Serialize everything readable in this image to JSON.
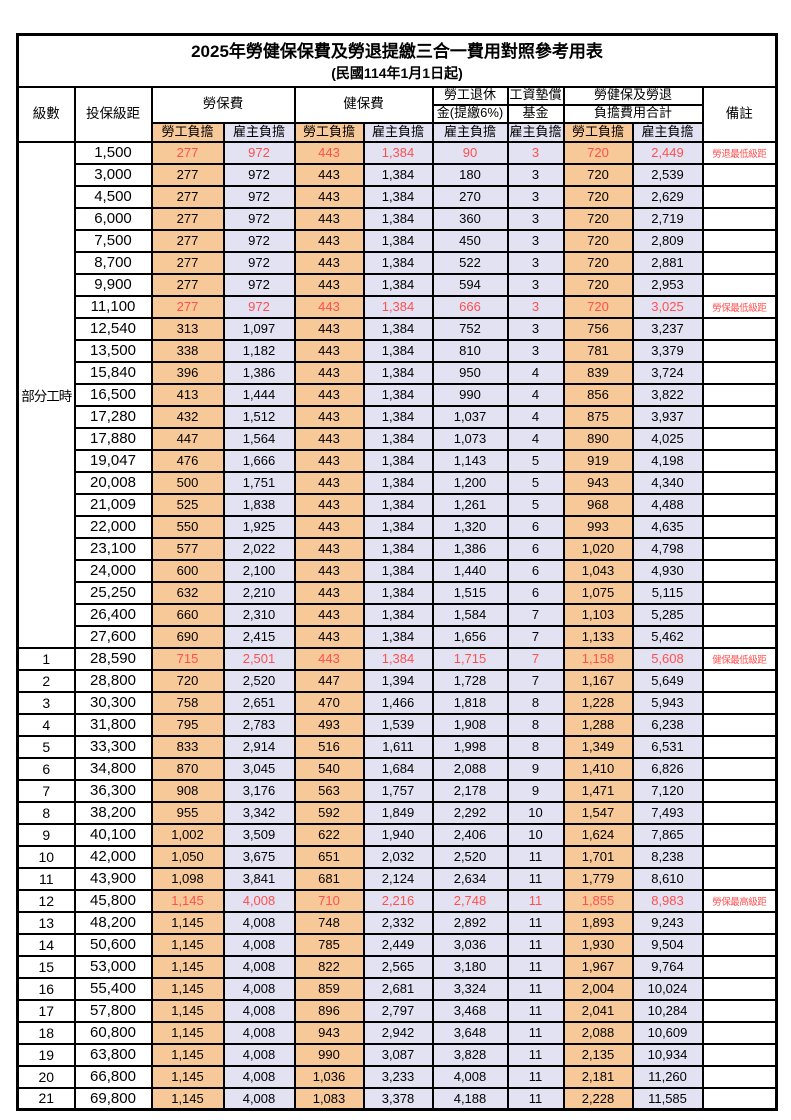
{
  "title": "2025年勞健保保費及勞退提繳三合一費用對照參考用表",
  "subtitle": "(民國114年1月1日起)",
  "header": {
    "level": "級數",
    "bracket": "投保級距",
    "labor_insurance": "勞保費",
    "health_insurance": "健保費",
    "pension_line1": "勞工退休",
    "pension_line2": "金(提繳6%)",
    "wage_fund_line1": "工資墊償",
    "wage_fund_line2": "基金",
    "total_line1": "勞健保及勞退",
    "total_line2": "負擔費用合計",
    "remark": "備註",
    "employee_share": "勞工負擔",
    "employer_share": "雇主負擔"
  },
  "part_time_label": "部分工時",
  "colors": {
    "employee_bg": "#F8C998",
    "employer_bg": "#E3E2F2",
    "highlight_red": "#FF5050"
  },
  "rows": [
    {
      "bracket": "1,500",
      "labor_emp": "277",
      "labor_er": "972",
      "health_emp": "443",
      "health_er": "1,384",
      "pension": "90",
      "fund": "3",
      "total_emp": "720",
      "total_er": "2,449",
      "note": "勞退最低級距",
      "highlight": true
    },
    {
      "bracket": "3,000",
      "labor_emp": "277",
      "labor_er": "972",
      "health_emp": "443",
      "health_er": "1,384",
      "pension": "180",
      "fund": "3",
      "total_emp": "720",
      "total_er": "2,539",
      "note": "",
      "highlight": false
    },
    {
      "bracket": "4,500",
      "labor_emp": "277",
      "labor_er": "972",
      "health_emp": "443",
      "health_er": "1,384",
      "pension": "270",
      "fund": "3",
      "total_emp": "720",
      "total_er": "2,629",
      "note": "",
      "highlight": false
    },
    {
      "bracket": "6,000",
      "labor_emp": "277",
      "labor_er": "972",
      "health_emp": "443",
      "health_er": "1,384",
      "pension": "360",
      "fund": "3",
      "total_emp": "720",
      "total_er": "2,719",
      "note": "",
      "highlight": false
    },
    {
      "bracket": "7,500",
      "labor_emp": "277",
      "labor_er": "972",
      "health_emp": "443",
      "health_er": "1,384",
      "pension": "450",
      "fund": "3",
      "total_emp": "720",
      "total_er": "2,809",
      "note": "",
      "highlight": false
    },
    {
      "bracket": "8,700",
      "labor_emp": "277",
      "labor_er": "972",
      "health_emp": "443",
      "health_er": "1,384",
      "pension": "522",
      "fund": "3",
      "total_emp": "720",
      "total_er": "2,881",
      "note": "",
      "highlight": false
    },
    {
      "bracket": "9,900",
      "labor_emp": "277",
      "labor_er": "972",
      "health_emp": "443",
      "health_er": "1,384",
      "pension": "594",
      "fund": "3",
      "total_emp": "720",
      "total_er": "2,953",
      "note": "",
      "highlight": false
    },
    {
      "bracket": "11,100",
      "labor_emp": "277",
      "labor_er": "972",
      "health_emp": "443",
      "health_er": "1,384",
      "pension": "666",
      "fund": "3",
      "total_emp": "720",
      "total_er": "3,025",
      "note": "勞保最低級距",
      "highlight": true
    },
    {
      "bracket": "12,540",
      "labor_emp": "313",
      "labor_er": "1,097",
      "health_emp": "443",
      "health_er": "1,384",
      "pension": "752",
      "fund": "3",
      "total_emp": "756",
      "total_er": "3,237",
      "note": "",
      "highlight": false
    },
    {
      "bracket": "13,500",
      "labor_emp": "338",
      "labor_er": "1,182",
      "health_emp": "443",
      "health_er": "1,384",
      "pension": "810",
      "fund": "3",
      "total_emp": "781",
      "total_er": "3,379",
      "note": "",
      "highlight": false
    },
    {
      "bracket": "15,840",
      "labor_emp": "396",
      "labor_er": "1,386",
      "health_emp": "443",
      "health_er": "1,384",
      "pension": "950",
      "fund": "4",
      "total_emp": "839",
      "total_er": "3,724",
      "note": "",
      "highlight": false
    },
    {
      "bracket": "16,500",
      "labor_emp": "413",
      "labor_er": "1,444",
      "health_emp": "443",
      "health_er": "1,384",
      "pension": "990",
      "fund": "4",
      "total_emp": "856",
      "total_er": "3,822",
      "note": "",
      "highlight": false
    },
    {
      "bracket": "17,280",
      "labor_emp": "432",
      "labor_er": "1,512",
      "health_emp": "443",
      "health_er": "1,384",
      "pension": "1,037",
      "fund": "4",
      "total_emp": "875",
      "total_er": "3,937",
      "note": "",
      "highlight": false
    },
    {
      "bracket": "17,880",
      "labor_emp": "447",
      "labor_er": "1,564",
      "health_emp": "443",
      "health_er": "1,384",
      "pension": "1,073",
      "fund": "4",
      "total_emp": "890",
      "total_er": "4,025",
      "note": "",
      "highlight": false
    },
    {
      "bracket": "19,047",
      "labor_emp": "476",
      "labor_er": "1,666",
      "health_emp": "443",
      "health_er": "1,384",
      "pension": "1,143",
      "fund": "5",
      "total_emp": "919",
      "total_er": "4,198",
      "note": "",
      "highlight": false
    },
    {
      "bracket": "20,008",
      "labor_emp": "500",
      "labor_er": "1,751",
      "health_emp": "443",
      "health_er": "1,384",
      "pension": "1,200",
      "fund": "5",
      "total_emp": "943",
      "total_er": "4,340",
      "note": "",
      "highlight": false
    },
    {
      "bracket": "21,009",
      "labor_emp": "525",
      "labor_er": "1,838",
      "health_emp": "443",
      "health_er": "1,384",
      "pension": "1,261",
      "fund": "5",
      "total_emp": "968",
      "total_er": "4,488",
      "note": "",
      "highlight": false
    },
    {
      "bracket": "22,000",
      "labor_emp": "550",
      "labor_er": "1,925",
      "health_emp": "443",
      "health_er": "1,384",
      "pension": "1,320",
      "fund": "6",
      "total_emp": "993",
      "total_er": "4,635",
      "note": "",
      "highlight": false
    },
    {
      "bracket": "23,100",
      "labor_emp": "577",
      "labor_er": "2,022",
      "health_emp": "443",
      "health_er": "1,384",
      "pension": "1,386",
      "fund": "6",
      "total_emp": "1,020",
      "total_er": "4,798",
      "note": "",
      "highlight": false
    },
    {
      "bracket": "24,000",
      "labor_emp": "600",
      "labor_er": "2,100",
      "health_emp": "443",
      "health_er": "1,384",
      "pension": "1,440",
      "fund": "6",
      "total_emp": "1,043",
      "total_er": "4,930",
      "note": "",
      "highlight": false
    },
    {
      "bracket": "25,250",
      "labor_emp": "632",
      "labor_er": "2,210",
      "health_emp": "443",
      "health_er": "1,384",
      "pension": "1,515",
      "fund": "6",
      "total_emp": "1,075",
      "total_er": "5,115",
      "note": "",
      "highlight": false
    },
    {
      "bracket": "26,400",
      "labor_emp": "660",
      "labor_er": "2,310",
      "health_emp": "443",
      "health_er": "1,384",
      "pension": "1,584",
      "fund": "7",
      "total_emp": "1,103",
      "total_er": "5,285",
      "note": "",
      "highlight": false
    },
    {
      "bracket": "27,600",
      "labor_emp": "690",
      "labor_er": "2,415",
      "health_emp": "443",
      "health_er": "1,384",
      "pension": "1,656",
      "fund": "7",
      "total_emp": "1,133",
      "total_er": "5,462",
      "note": "",
      "highlight": false
    },
    {
      "level": "1",
      "bracket": "28,590",
      "labor_emp": "715",
      "labor_er": "2,501",
      "health_emp": "443",
      "health_er": "1,384",
      "pension": "1,715",
      "fund": "7",
      "total_emp": "1,158",
      "total_er": "5,608",
      "note": "健保最低級距",
      "highlight": true
    },
    {
      "level": "2",
      "bracket": "28,800",
      "labor_emp": "720",
      "labor_er": "2,520",
      "health_emp": "447",
      "health_er": "1,394",
      "pension": "1,728",
      "fund": "7",
      "total_emp": "1,167",
      "total_er": "5,649",
      "note": "",
      "highlight": false
    },
    {
      "level": "3",
      "bracket": "30,300",
      "labor_emp": "758",
      "labor_er": "2,651",
      "health_emp": "470",
      "health_er": "1,466",
      "pension": "1,818",
      "fund": "8",
      "total_emp": "1,228",
      "total_er": "5,943",
      "note": "",
      "highlight": false
    },
    {
      "level": "4",
      "bracket": "31,800",
      "labor_emp": "795",
      "labor_er": "2,783",
      "health_emp": "493",
      "health_er": "1,539",
      "pension": "1,908",
      "fund": "8",
      "total_emp": "1,288",
      "total_er": "6,238",
      "note": "",
      "highlight": false
    },
    {
      "level": "5",
      "bracket": "33,300",
      "labor_emp": "833",
      "labor_er": "2,914",
      "health_emp": "516",
      "health_er": "1,611",
      "pension": "1,998",
      "fund": "8",
      "total_emp": "1,349",
      "total_er": "6,531",
      "note": "",
      "highlight": false
    },
    {
      "level": "6",
      "bracket": "34,800",
      "labor_emp": "870",
      "labor_er": "3,045",
      "health_emp": "540",
      "health_er": "1,684",
      "pension": "2,088",
      "fund": "9",
      "total_emp": "1,410",
      "total_er": "6,826",
      "note": "",
      "highlight": false
    },
    {
      "level": "7",
      "bracket": "36,300",
      "labor_emp": "908",
      "labor_er": "3,176",
      "health_emp": "563",
      "health_er": "1,757",
      "pension": "2,178",
      "fund": "9",
      "total_emp": "1,471",
      "total_er": "7,120",
      "note": "",
      "highlight": false
    },
    {
      "level": "8",
      "bracket": "38,200",
      "labor_emp": "955",
      "labor_er": "3,342",
      "health_emp": "592",
      "health_er": "1,849",
      "pension": "2,292",
      "fund": "10",
      "total_emp": "1,547",
      "total_er": "7,493",
      "note": "",
      "highlight": false
    },
    {
      "level": "9",
      "bracket": "40,100",
      "labor_emp": "1,002",
      "labor_er": "3,509",
      "health_emp": "622",
      "health_er": "1,940",
      "pension": "2,406",
      "fund": "10",
      "total_emp": "1,624",
      "total_er": "7,865",
      "note": "",
      "highlight": false
    },
    {
      "level": "10",
      "bracket": "42,000",
      "labor_emp": "1,050",
      "labor_er": "3,675",
      "health_emp": "651",
      "health_er": "2,032",
      "pension": "2,520",
      "fund": "11",
      "total_emp": "1,701",
      "total_er": "8,238",
      "note": "",
      "highlight": false
    },
    {
      "level": "11",
      "bracket": "43,900",
      "labor_emp": "1,098",
      "labor_er": "3,841",
      "health_emp": "681",
      "health_er": "2,124",
      "pension": "2,634",
      "fund": "11",
      "total_emp": "1,779",
      "total_er": "8,610",
      "note": "",
      "highlight": false
    },
    {
      "level": "12",
      "bracket": "45,800",
      "labor_emp": "1,145",
      "labor_er": "4,008",
      "health_emp": "710",
      "health_er": "2,216",
      "pension": "2,748",
      "fund": "11",
      "total_emp": "1,855",
      "total_er": "8,983",
      "note": "勞保最高級距",
      "highlight": true
    },
    {
      "level": "13",
      "bracket": "48,200",
      "labor_emp": "1,145",
      "labor_er": "4,008",
      "health_emp": "748",
      "health_er": "2,332",
      "pension": "2,892",
      "fund": "11",
      "total_emp": "1,893",
      "total_er": "9,243",
      "note": "",
      "highlight": false
    },
    {
      "level": "14",
      "bracket": "50,600",
      "labor_emp": "1,145",
      "labor_er": "4,008",
      "health_emp": "785",
      "health_er": "2,449",
      "pension": "3,036",
      "fund": "11",
      "total_emp": "1,930",
      "total_er": "9,504",
      "note": "",
      "highlight": false
    },
    {
      "level": "15",
      "bracket": "53,000",
      "labor_emp": "1,145",
      "labor_er": "4,008",
      "health_emp": "822",
      "health_er": "2,565",
      "pension": "3,180",
      "fund": "11",
      "total_emp": "1,967",
      "total_er": "9,764",
      "note": "",
      "highlight": false
    },
    {
      "level": "16",
      "bracket": "55,400",
      "labor_emp": "1,145",
      "labor_er": "4,008",
      "health_emp": "859",
      "health_er": "2,681",
      "pension": "3,324",
      "fund": "11",
      "total_emp": "2,004",
      "total_er": "10,024",
      "note": "",
      "highlight": false
    },
    {
      "level": "17",
      "bracket": "57,800",
      "labor_emp": "1,145",
      "labor_er": "4,008",
      "health_emp": "896",
      "health_er": "2,797",
      "pension": "3,468",
      "fund": "11",
      "total_emp": "2,041",
      "total_er": "10,284",
      "note": "",
      "highlight": false
    },
    {
      "level": "18",
      "bracket": "60,800",
      "labor_emp": "1,145",
      "labor_er": "4,008",
      "health_emp": "943",
      "health_er": "2,942",
      "pension": "3,648",
      "fund": "11",
      "total_emp": "2,088",
      "total_er": "10,609",
      "note": "",
      "highlight": false
    },
    {
      "level": "19",
      "bracket": "63,800",
      "labor_emp": "1,145",
      "labor_er": "4,008",
      "health_emp": "990",
      "health_er": "3,087",
      "pension": "3,828",
      "fund": "11",
      "total_emp": "2,135",
      "total_er": "10,934",
      "note": "",
      "highlight": false
    },
    {
      "level": "20",
      "bracket": "66,800",
      "labor_emp": "1,145",
      "labor_er": "4,008",
      "health_emp": "1,036",
      "health_er": "3,233",
      "pension": "4,008",
      "fund": "11",
      "total_emp": "2,181",
      "total_er": "11,260",
      "note": "",
      "highlight": false
    },
    {
      "level": "21",
      "bracket": "69,800",
      "labor_emp": "1,145",
      "labor_er": "4,008",
      "health_emp": "1,083",
      "health_er": "3,378",
      "pension": "4,188",
      "fund": "11",
      "total_emp": "2,228",
      "total_er": "11,585",
      "note": "",
      "highlight": false
    }
  ]
}
